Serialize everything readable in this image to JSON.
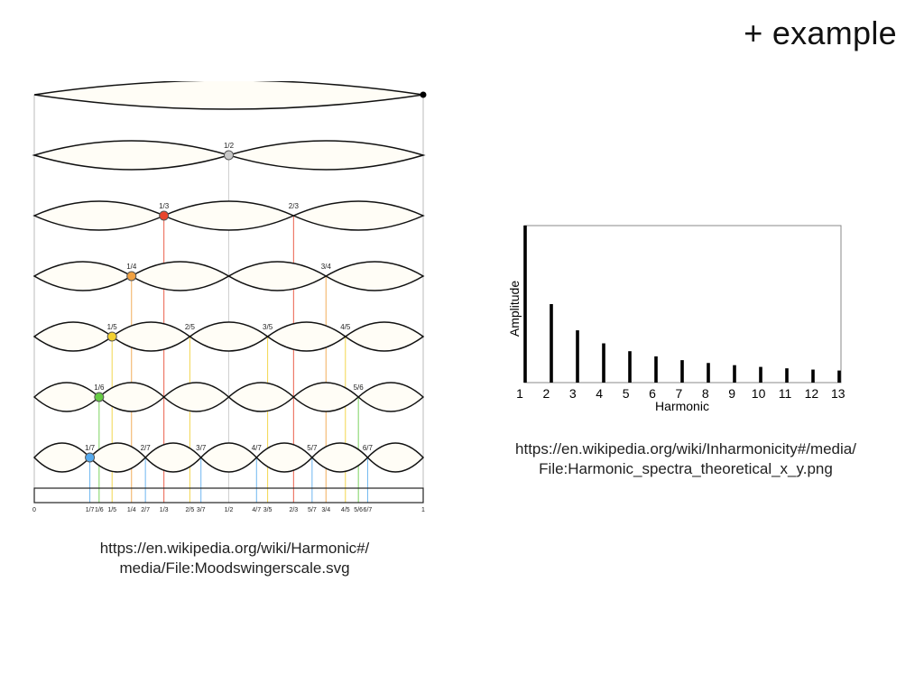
{
  "slide": {
    "title": "+ example"
  },
  "string_diagram": {
    "node_colors": {
      "2": "#c8c8c8",
      "3": "#e8452c",
      "4": "#f0a040",
      "5": "#f2d030",
      "6": "#66cc44",
      "7": "#55aaee"
    },
    "modes": [
      {
        "n": 1,
        "node_labels": []
      },
      {
        "n": 2,
        "node_labels": [
          "1/2"
        ]
      },
      {
        "n": 3,
        "node_labels": [
          "1/3",
          "2/3"
        ]
      },
      {
        "n": 4,
        "node_labels": [
          "1/4",
          "3/4"
        ]
      },
      {
        "n": 5,
        "node_labels": [
          "1/5",
          "2/5",
          "3/5",
          "4/5"
        ]
      },
      {
        "n": 6,
        "node_labels": [
          "1/6",
          "5/6"
        ]
      },
      {
        "n": 7,
        "node_labels": [
          "1/7",
          "2/7",
          "3/7",
          "4/7",
          "5/7",
          "6/7"
        ]
      }
    ],
    "scale_ticks": [
      {
        "label": "0",
        "n": 1,
        "k": 0
      },
      {
        "label": "1/7",
        "n": 7,
        "k": 1
      },
      {
        "label": "1/6",
        "n": 6,
        "k": 1
      },
      {
        "label": "1/5",
        "n": 5,
        "k": 1
      },
      {
        "label": "1/4",
        "n": 4,
        "k": 1
      },
      {
        "label": "2/7",
        "n": 7,
        "k": 2
      },
      {
        "label": "1/3",
        "n": 3,
        "k": 1
      },
      {
        "label": "2/5",
        "n": 5,
        "k": 2
      },
      {
        "label": "3/7",
        "n": 7,
        "k": 3
      },
      {
        "label": "1/2",
        "n": 2,
        "k": 1
      },
      {
        "label": "4/7",
        "n": 7,
        "k": 4
      },
      {
        "label": "3/5",
        "n": 5,
        "k": 3
      },
      {
        "label": "2/3",
        "n": 3,
        "k": 2
      },
      {
        "label": "5/7",
        "n": 7,
        "k": 5
      },
      {
        "label": "3/4",
        "n": 4,
        "k": 3
      },
      {
        "label": "4/5",
        "n": 5,
        "k": 4
      },
      {
        "label": "5/6",
        "n": 6,
        "k": 5
      },
      {
        "label": "6/7",
        "n": 7,
        "k": 6
      },
      {
        "label": "1",
        "n": 1,
        "k": 1
      }
    ],
    "caption_lines": [
      "https://en.wikipedia.org/wiki/Harmonic#/",
      "media/File:Moodswingerscale.svg"
    ]
  },
  "chart_data": {
    "type": "bar",
    "title": "",
    "xlabel": "Harmonic",
    "ylabel": "Amplitude",
    "categories": [
      "1",
      "2",
      "3",
      "4",
      "5",
      "6",
      "7",
      "8",
      "9",
      "10",
      "11",
      "12",
      "13"
    ],
    "values": [
      1.0,
      0.5,
      0.333,
      0.25,
      0.2,
      0.167,
      0.143,
      0.125,
      0.111,
      0.1,
      0.091,
      0.083,
      0.077
    ],
    "ylim": [
      0,
      1.0
    ],
    "grid": false,
    "bar_color": "#000000",
    "caption_lines": [
      "https://en.wikipedia.org/wiki/Inharmonicity#/media/",
      "File:Harmonic_spectra_theoretical_x_y.png"
    ]
  }
}
